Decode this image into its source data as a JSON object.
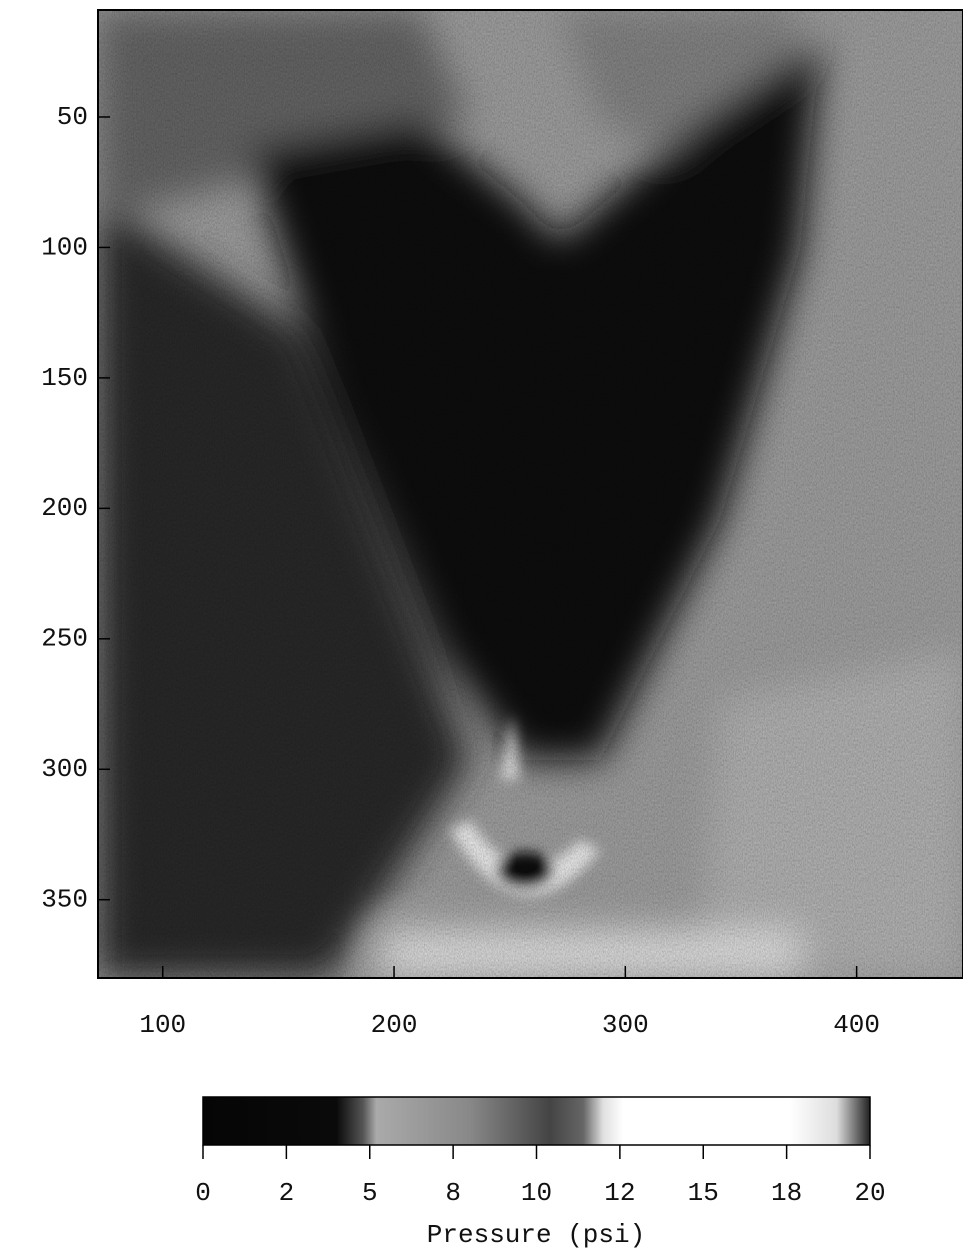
{
  "chart_data": {
    "type": "image",
    "xlim": [
      72,
      446
    ],
    "xticks": [
      100,
      200,
      300,
      400
    ],
    "ylim": [
      380,
      9
    ],
    "yticks": [
      50,
      100,
      150,
      200,
      250,
      300,
      350
    ],
    "colorbar": {
      "label": "Pressure (psi)",
      "lim": [
        0,
        20
      ],
      "ticks": [
        0,
        {
          "value": 2.5,
          "label": "2"
        },
        5,
        {
          "value": 7.5,
          "label": "8"
        },
        10,
        {
          "value": 12.5,
          "label": "12"
        },
        15,
        {
          "value": 17.5,
          "label": "18"
        },
        20
      ]
    }
  }
}
